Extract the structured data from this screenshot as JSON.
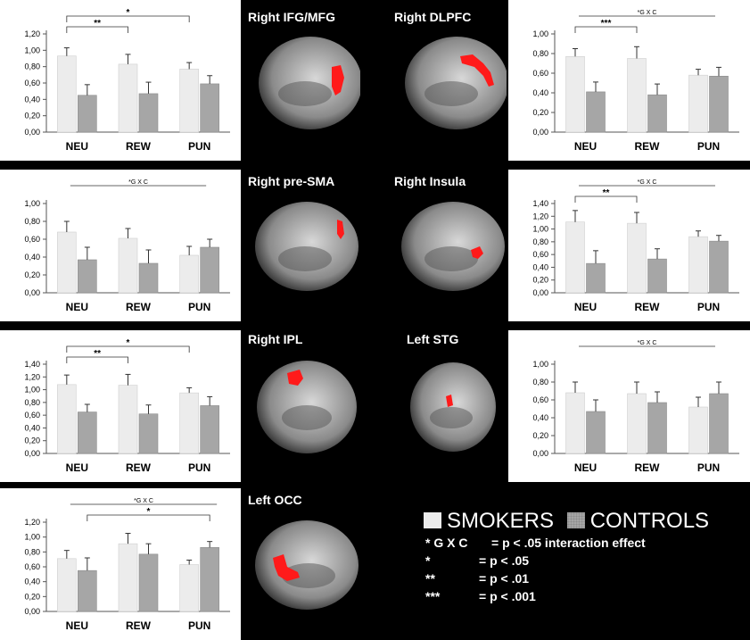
{
  "regions": [
    {
      "label": "Right IFG/MFG"
    },
    {
      "label": "Right DLPFC"
    },
    {
      "label": "Right pre-SMA"
    },
    {
      "label": "Right Insula"
    },
    {
      "label": "Right IPL"
    },
    {
      "label": "Left STG"
    },
    {
      "label": "Left OCC"
    }
  ],
  "legend": {
    "smokers": "SMOKERS",
    "controls": "CONTROLS",
    "notes": [
      {
        "key": "* G X C",
        "value": "= p < .05 interaction effect"
      },
      {
        "key": "*",
        "value": "= p < .05"
      },
      {
        "key": "**",
        "value": "= p < .01"
      },
      {
        "key": "***",
        "value": "= p < .001"
      }
    ]
  },
  "colors": {
    "smokers": "#ececec",
    "controls": "#a6a6a6",
    "activation": "#ff1a1a",
    "background": "#000000"
  },
  "chart_data": [
    {
      "type": "bar",
      "categories": [
        "NEU",
        "REW",
        "PUN"
      ],
      "series": [
        {
          "name": "SMOKERS",
          "values": [
            0.93,
            0.83,
            0.77
          ],
          "errors": [
            0.1,
            0.12,
            0.08
          ]
        },
        {
          "name": "CONTROLS",
          "values": [
            0.45,
            0.47,
            0.59
          ],
          "errors": [
            0.13,
            0.14,
            0.1
          ]
        }
      ],
      "ylim": [
        0,
        1.2
      ],
      "yticks": [
        "0,00",
        "0,20",
        "0,40",
        "0,60",
        "0,80",
        "1,00",
        "1,20"
      ],
      "annotations": [
        "*",
        "**"
      ]
    },
    {
      "type": "bar",
      "categories": [
        "NEU",
        "REW",
        "PUN"
      ],
      "series": [
        {
          "name": "SMOKERS",
          "values": [
            0.77,
            0.75,
            0.58
          ],
          "errors": [
            0.08,
            0.12,
            0.06
          ]
        },
        {
          "name": "CONTROLS",
          "values": [
            0.41,
            0.38,
            0.57
          ],
          "errors": [
            0.1,
            0.11,
            0.09
          ]
        }
      ],
      "ylim": [
        0,
        1.0
      ],
      "yticks": [
        "0,00",
        "0,20",
        "0,40",
        "0,60",
        "0,80",
        "1,00"
      ],
      "annotations": [
        "*G X C",
        "***"
      ]
    },
    {
      "type": "bar",
      "categories": [
        "NEU",
        "REW",
        "PUN"
      ],
      "series": [
        {
          "name": "SMOKERS",
          "values": [
            0.68,
            0.61,
            0.42
          ],
          "errors": [
            0.12,
            0.11,
            0.1
          ]
        },
        {
          "name": "CONTROLS",
          "values": [
            0.37,
            0.33,
            0.51
          ],
          "errors": [
            0.14,
            0.15,
            0.09
          ]
        }
      ],
      "ylim": [
        0,
        1.0
      ],
      "yticks": [
        "0,00",
        "0,20",
        "0,40",
        "0,60",
        "0,80",
        "1,00"
      ],
      "annotations": [
        "*G X C"
      ]
    },
    {
      "type": "bar",
      "categories": [
        "NEU",
        "REW",
        "PUN"
      ],
      "series": [
        {
          "name": "SMOKERS",
          "values": [
            1.11,
            1.09,
            0.88
          ],
          "errors": [
            0.18,
            0.17,
            0.09
          ]
        },
        {
          "name": "CONTROLS",
          "values": [
            0.46,
            0.53,
            0.81
          ],
          "errors": [
            0.2,
            0.16,
            0.09
          ]
        }
      ],
      "ylim": [
        0,
        1.4
      ],
      "yticks": [
        "0,00",
        "0,20",
        "0,40",
        "0,60",
        "0,80",
        "1,00",
        "1,20",
        "1,40"
      ],
      "annotations": [
        "*G X C",
        "**"
      ]
    },
    {
      "type": "bar",
      "categories": [
        "NEU",
        "REW",
        "PUN"
      ],
      "series": [
        {
          "name": "SMOKERS",
          "values": [
            1.08,
            1.07,
            0.95
          ],
          "errors": [
            0.15,
            0.17,
            0.08
          ]
        },
        {
          "name": "CONTROLS",
          "values": [
            0.65,
            0.62,
            0.75
          ],
          "errors": [
            0.12,
            0.14,
            0.14
          ]
        }
      ],
      "ylim": [
        0,
        1.4
      ],
      "yticks": [
        "0,00",
        "0,20",
        "0,40",
        "0,60",
        "0,80",
        "1,00",
        "1,20",
        "1,40"
      ],
      "annotations": [
        "*",
        "**"
      ]
    },
    {
      "type": "bar",
      "categories": [
        "NEU",
        "REW",
        "PUN"
      ],
      "series": [
        {
          "name": "SMOKERS",
          "values": [
            0.68,
            0.67,
            0.52
          ],
          "errors": [
            0.12,
            0.13,
            0.11
          ]
        },
        {
          "name": "CONTROLS",
          "values": [
            0.47,
            0.57,
            0.67
          ],
          "errors": [
            0.13,
            0.12,
            0.13
          ]
        }
      ],
      "ylim": [
        0,
        1.0
      ],
      "yticks": [
        "0,00",
        "0,20",
        "0,40",
        "0,60",
        "0,80",
        "1,00"
      ],
      "annotations": [
        "*G X C"
      ]
    },
    {
      "type": "bar",
      "categories": [
        "NEU",
        "REW",
        "PUN"
      ],
      "series": [
        {
          "name": "SMOKERS",
          "values": [
            0.71,
            0.91,
            0.63
          ],
          "errors": [
            0.11,
            0.14,
            0.06
          ]
        },
        {
          "name": "CONTROLS",
          "values": [
            0.55,
            0.77,
            0.86
          ],
          "errors": [
            0.17,
            0.14,
            0.08
          ]
        }
      ],
      "ylim": [
        0,
        1.2
      ],
      "yticks": [
        "0,00",
        "0,20",
        "0,40",
        "0,60",
        "0,80",
        "1,00",
        "1,20"
      ],
      "annotations": [
        "*G X C",
        "*"
      ]
    }
  ]
}
